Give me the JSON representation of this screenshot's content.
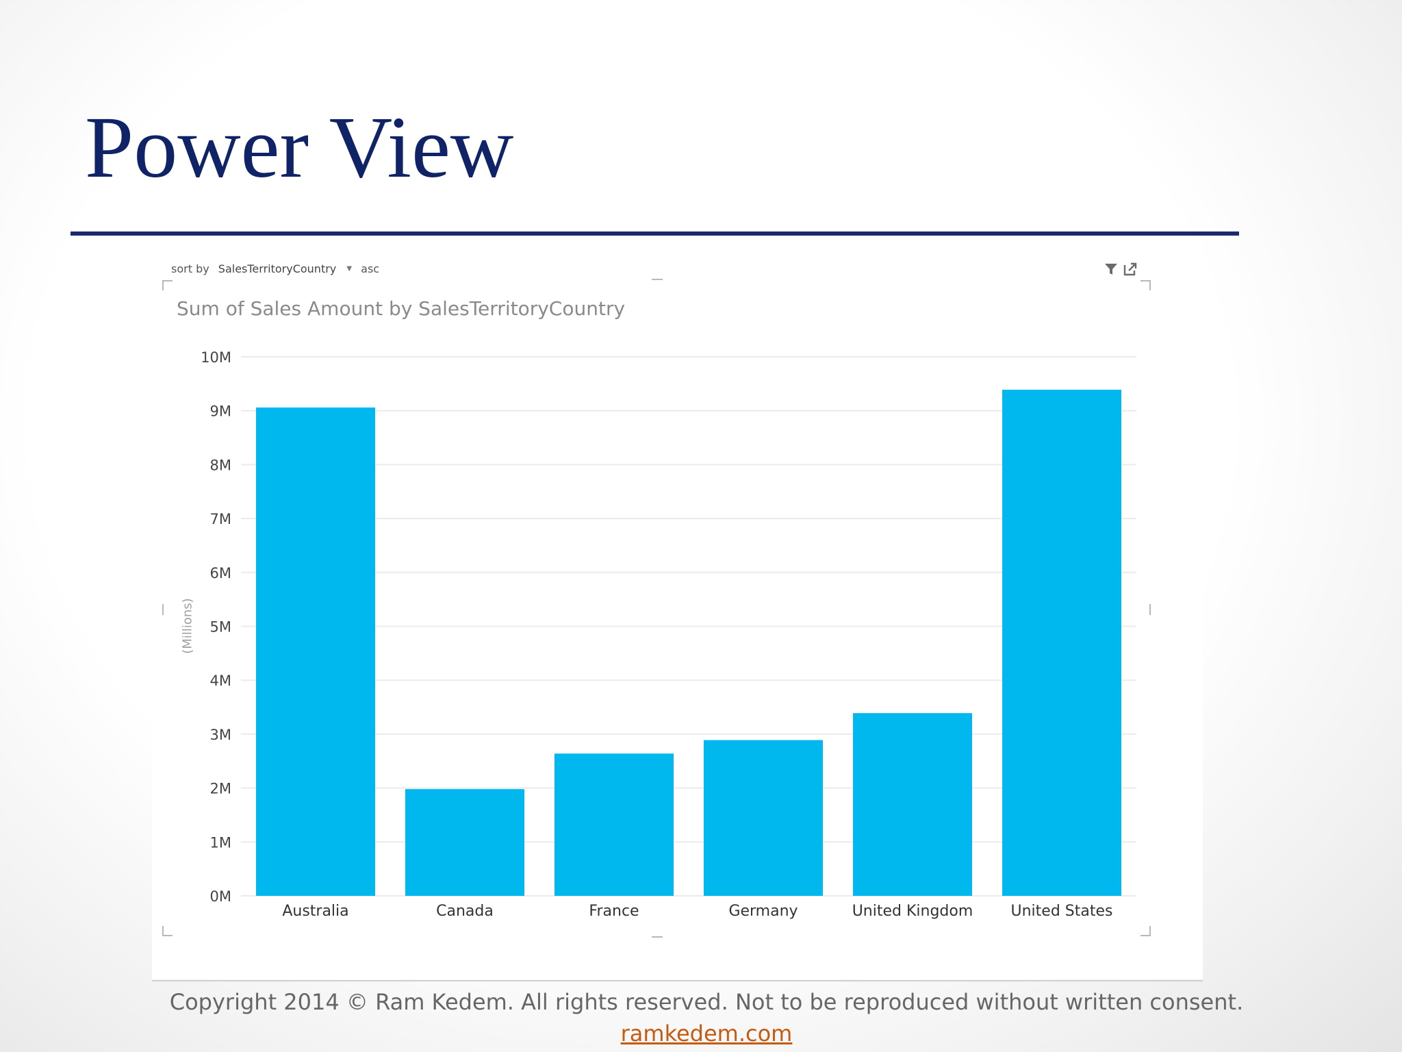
{
  "slide": {
    "title": "Power View",
    "copyright": "Copyright 2014 © Ram Kedem. All rights reserved. Not to be reproduced without written consent.",
    "link_text": "ramkedem.com"
  },
  "panel": {
    "sort_label": "sort by",
    "sort_field": "SalesTerritoryCountry",
    "sort_direction": "asc",
    "icons": [
      "filter-icon",
      "pop-out-icon"
    ]
  },
  "colors": {
    "title": "#0f2366",
    "rule": "#1b2a6b",
    "bar": "#01b8ee",
    "gridline": "#ebebeb",
    "link": "#c55a11"
  },
  "chart_data": {
    "type": "bar",
    "title": "Sum of Sales Amount by SalesTerritoryCountry",
    "xlabel": "",
    "ylabel": "(Millions)",
    "categories": [
      "Australia",
      "Canada",
      "France",
      "Germany",
      "United Kingdom",
      "United States"
    ],
    "values": [
      9.06,
      1.98,
      2.64,
      2.89,
      3.39,
      9.39
    ],
    "value_unit": "millions",
    "ylim": [
      0,
      10
    ],
    "yticks": [
      0,
      1,
      2,
      3,
      4,
      5,
      6,
      7,
      8,
      9,
      10
    ],
    "ytick_labels": [
      "0M",
      "1M",
      "2M",
      "3M",
      "4M",
      "5M",
      "6M",
      "7M",
      "8M",
      "9M",
      "10M"
    ],
    "grid": true,
    "legend": "none"
  }
}
